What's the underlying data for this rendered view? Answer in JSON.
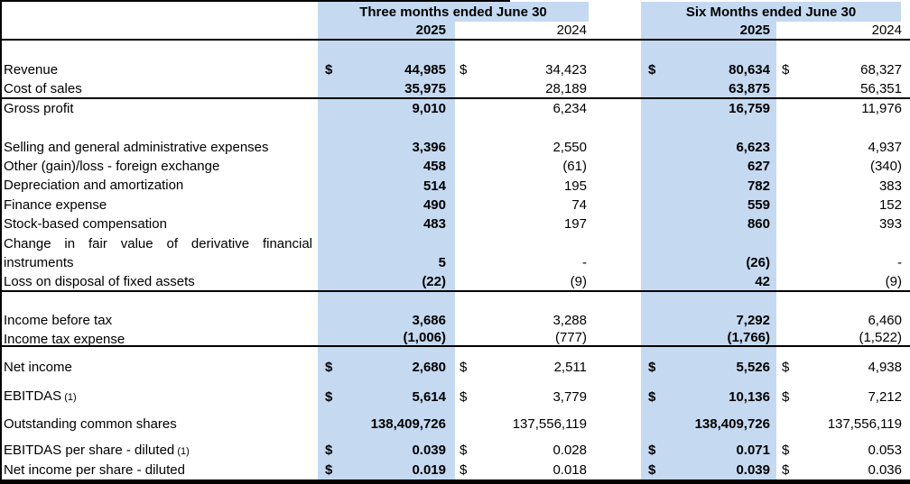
{
  "colors": {
    "highlight": "#c5d9f1",
    "rule": "#000000"
  },
  "header": {
    "group1": "Three months ended June 30",
    "group2": "Six Months ended June 30",
    "q2025": "2025",
    "q2024": "2024",
    "s2025": "2025",
    "s2024": "2024"
  },
  "rows": {
    "revenue": {
      "label": "Revenue",
      "dollar": true,
      "q2025": "44,985",
      "q2024": "34,423",
      "s2025": "80,634",
      "s2024": "68,327"
    },
    "cost_of_sales": {
      "label": "Cost of sales",
      "dollar": false,
      "q2025": "35,975",
      "q2024": "28,189",
      "s2025": "63,875",
      "s2024": "56,351"
    },
    "gross_profit": {
      "label": "Gross profit",
      "dollar": false,
      "q2025": "9,010",
      "q2024": "6,234",
      "s2025": "16,759",
      "s2024": "11,976"
    },
    "sga": {
      "label": "Selling and general administrative expenses",
      "dollar": false,
      "q2025": "3,396",
      "q2024": "2,550",
      "s2025": "6,623",
      "s2024": "4,937"
    },
    "fx": {
      "label": "Other (gain)/loss - foreign exchange",
      "dollar": false,
      "q2025": "458",
      "q2024": "(61)",
      "s2025": "627",
      "s2024": "(340)"
    },
    "depreciation": {
      "label": "Depreciation and amortization",
      "dollar": false,
      "q2025": "514",
      "q2024": "195",
      "s2025": "782",
      "s2024": "383"
    },
    "finance": {
      "label": "Finance expense",
      "dollar": false,
      "q2025": "490",
      "q2024": "74",
      "s2025": "559",
      "s2024": "152"
    },
    "stock_comp": {
      "label": "Stock-based compensation",
      "dollar": false,
      "q2025": "483",
      "q2024": "197",
      "s2025": "860",
      "s2024": "393"
    },
    "derivative": {
      "label": "Change in fair value of derivative financial instruments",
      "dollar": false,
      "q2025": "5",
      "q2024": "-",
      "s2025": "(26)",
      "s2024": "-"
    },
    "disposal": {
      "label": "Loss on disposal of fixed assets",
      "dollar": false,
      "q2025": "(22)",
      "q2024": "(9)",
      "s2025": "42",
      "s2024": "(9)"
    },
    "income_before_tax": {
      "label": "Income before tax",
      "dollar": false,
      "q2025": "3,686",
      "q2024": "3,288",
      "s2025": "7,292",
      "s2024": "6,460"
    },
    "income_tax": {
      "label": "Income tax expense",
      "dollar": false,
      "q2025": "(1,006)",
      "q2024": "(777)",
      "s2025": "(1,766)",
      "s2024": "(1,522)"
    },
    "net_income": {
      "label": "Net income",
      "dollar": true,
      "q2025": "2,680",
      "q2024": "2,511",
      "s2025": "5,526",
      "s2024": "4,938"
    },
    "ebitdas": {
      "label": "EBITDAS",
      "footnote": "(1)",
      "dollar": true,
      "q2025": "5,614",
      "q2024": "3,779",
      "s2025": "10,136",
      "s2024": "7,212"
    },
    "shares": {
      "label": "Outstanding common shares",
      "dollar": false,
      "q2025": "138,409,726",
      "q2024": "137,556,119",
      "s2025": "138,409,726",
      "s2024": "137,556,119"
    },
    "eps_ebitdas": {
      "label": "EBITDAS per share - diluted",
      "footnote": "(1)",
      "dollar": true,
      "q2025": "0.039",
      "q2024": "0.028",
      "s2025": "0.071",
      "s2024": "0.053"
    },
    "eps_net_income": {
      "label": "Net income per share - diluted",
      "dollar": true,
      "q2025": "0.019",
      "q2024": "0.018",
      "s2025": "0.039",
      "s2024": "0.036"
    }
  },
  "dollar_sign": "$"
}
